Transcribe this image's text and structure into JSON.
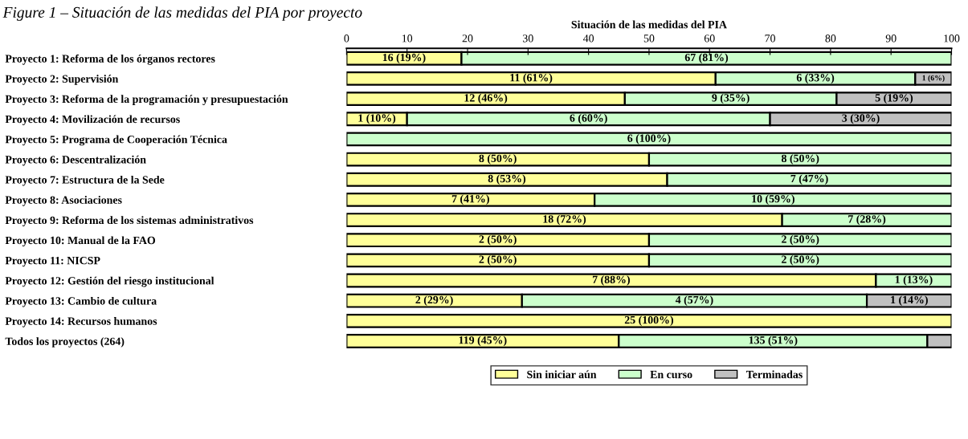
{
  "chart_data": {
    "type": "bar",
    "orientation": "horizontal",
    "stacked": true,
    "title": "Situación de las medidas del PIA",
    "annotations": [
      "Figure 1 – Situación de las medidas del PIA por proyecto"
    ],
    "categories": [
      "Proyecto 1: Reforma de los órganos rectores",
      "Proyecto 2: Supervisión",
      "Proyecto 3: Reforma de la programación y presupuestación",
      "Proyecto 4: Movilización de recursos",
      "Proyecto 5: Programa de Cooperación Técnica",
      "Proyecto 6: Descentralización",
      "Proyecto 7: Estructura de la Sede",
      "Proyecto 8: Asociaciones",
      "Proyecto 9: Reforma de los sistemas administrativos",
      "Proyecto 10: Manual de la FAO",
      "Proyecto 11: NICSP",
      "Proyecto 12: Gestión del riesgo institucional",
      "Proyecto 13: Cambio de cultura",
      "Proyecto 14: Recursos humanos",
      "Todos los proyectos (264)"
    ],
    "series": [
      {
        "name": "Sin iniciar aún",
        "color": "#ffff99",
        "values": [
          19,
          61,
          46,
          10,
          null,
          50,
          53,
          41,
          72,
          50,
          50,
          87.5,
          29,
          100,
          45
        ],
        "value_labels": [
          "16 (19%)",
          "11 (61%)",
          "12 (46%)",
          "1 (10%)",
          null,
          "8 (50%)",
          "8 (53%)",
          "7 (41%)",
          "18 (72%)",
          "2 (50%)",
          "2 (50%)",
          "7 (88%)",
          "2 (29%)",
          "25 (100%)",
          "119 (45%)"
        ]
      },
      {
        "name": "En curso",
        "color": "#ccffcc",
        "values": [
          81,
          33,
          35,
          60,
          100,
          50,
          47,
          59,
          28,
          50,
          50,
          12.5,
          57,
          null,
          51
        ],
        "value_labels": [
          "67 (81%)",
          "6 (33%)",
          "9 (35%)",
          "6 (60%)",
          "6 (100%)",
          "8 (50%)",
          "7 (47%)",
          "10 (59%)",
          "7 (28%)",
          "2 (50%)",
          "2 (50%)",
          "1 (13%)",
          "4 (57%)",
          null,
          "135 (51%)"
        ]
      },
      {
        "name": "Terminadas",
        "color": "#c0c0c0",
        "values": [
          null,
          6,
          19,
          30,
          null,
          null,
          null,
          null,
          null,
          null,
          null,
          null,
          14,
          null,
          4
        ],
        "value_labels": [
          null,
          "1 (6%)",
          "5 (19%)",
          "3 (30%)",
          null,
          null,
          null,
          null,
          null,
          null,
          null,
          null,
          "1 (14%)",
          null,
          null
        ]
      }
    ],
    "xlim": [
      0,
      100
    ],
    "xticks": [
      0,
      10,
      20,
      30,
      40,
      50,
      60,
      70,
      80,
      90,
      100
    ],
    "legend": "bottom",
    "grid": false
  }
}
